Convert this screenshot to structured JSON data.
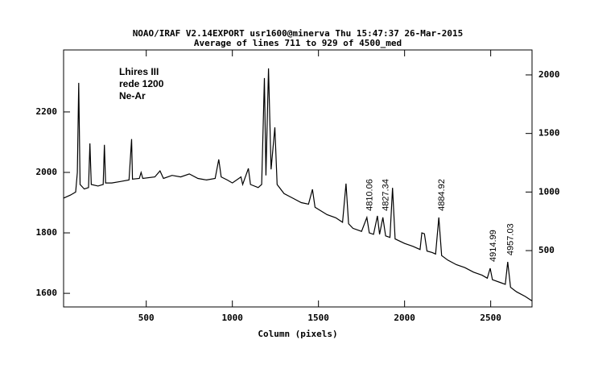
{
  "chart_data": {
    "type": "line",
    "title": "NOAO/IRAF V2.14EXPORT usr1600@minerva Thu 15:47:37 26-Mar-2015",
    "subtitle": "Average of lines 711 to 929 of 4500_med",
    "xlabel": "Column (pixels)",
    "text_box": [
      "Lhires III",
      "rede 1200",
      "Ne-Ar"
    ],
    "color": "#000000",
    "x": [
      20,
      60,
      90,
      100,
      108,
      116,
      140,
      165,
      173,
      181,
      220,
      250,
      257,
      264,
      300,
      350,
      400,
      415,
      420,
      460,
      470,
      480,
      550,
      580,
      600,
      650,
      700,
      750,
      800,
      850,
      900,
      921,
      935,
      970,
      1000,
      1050,
      1060,
      1093,
      1105,
      1150,
      1170,
      1186,
      1195,
      1210,
      1225,
      1247,
      1260,
      1300,
      1350,
      1400,
      1442,
      1465,
      1480,
      1550,
      1600,
      1640,
      1660,
      1675,
      1700,
      1750,
      1781,
      1795,
      1820,
      1842,
      1855,
      1874,
      1890,
      1915,
      1930,
      1945,
      2000,
      2050,
      2090,
      2100,
      2115,
      2130,
      2160,
      2180,
      2199,
      2215,
      2250,
      2300,
      2350,
      2400,
      2450,
      2480,
      2497,
      2510,
      2560,
      2585,
      2599,
      2615,
      2650,
      2700,
      2740
    ],
    "values": [
      1915,
      1925,
      1935,
      2000,
      2296,
      1960,
      1945,
      1950,
      2096,
      1960,
      1955,
      1960,
      2091,
      1965,
      1965,
      1970,
      1975,
      2110,
      1978,
      1980,
      2000,
      1980,
      1985,
      2005,
      1980,
      1990,
      1985,
      1995,
      1980,
      1975,
      1980,
      2043,
      1985,
      1975,
      1965,
      1985,
      1960,
      2013,
      1960,
      1950,
      1960,
      2312,
      1990,
      2344,
      2010,
      2149,
      1960,
      1930,
      1915,
      1900,
      1895,
      1944,
      1885,
      1860,
      1850,
      1835,
      1963,
      1830,
      1815,
      1805,
      1851,
      1800,
      1795,
      1856,
      1795,
      1851,
      1790,
      1785,
      1949,
      1780,
      1765,
      1755,
      1745,
      1800,
      1797,
      1740,
      1735,
      1730,
      1851,
      1725,
      1710,
      1695,
      1685,
      1670,
      1660,
      1650,
      1683,
      1645,
      1635,
      1630,
      1704,
      1620,
      1605,
      1590,
      1575
    ],
    "annotations": [
      {
        "text": "4810.06",
        "x": 1781,
        "y": 1851
      },
      {
        "text": "4827.34",
        "x": 1874,
        "y": 1851
      },
      {
        "text": "4884.92",
        "x": 2199,
        "y": 1851
      },
      {
        "text": "4914.99",
        "x": 2497,
        "y": 1683
      },
      {
        "text": "4957.03",
        "x": 2599,
        "y": 1704
      }
    ],
    "xlim": [
      20,
      2740
    ],
    "ylim": [
      1555,
      2405
    ],
    "y2lim": [
      19,
      2213
    ],
    "xticks": [
      500,
      1000,
      1500,
      2000,
      2500
    ],
    "yticks": [
      1600,
      1800,
      2000,
      2200
    ],
    "y2ticks": [
      500,
      1000,
      1500,
      2000
    ]
  }
}
